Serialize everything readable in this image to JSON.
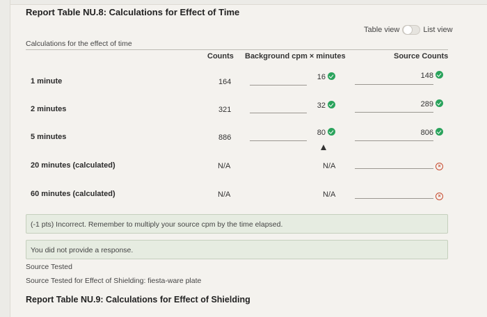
{
  "report": {
    "title": "Report Table NU.8: Calculations for Effect of Time",
    "subtitle": "Calculations for the effect of time",
    "view_toggle": {
      "left": "Table view",
      "right": "List view"
    }
  },
  "table": {
    "columns": [
      "Counts",
      "Background cpm × minutes",
      "Source Counts"
    ],
    "rows": [
      {
        "label": "1 minute",
        "counts": "164",
        "background": "16",
        "source": "148"
      },
      {
        "label": "2 minutes",
        "counts": "321",
        "background": "32",
        "source": "289"
      },
      {
        "label": "5 minutes",
        "counts": "886",
        "background": "80",
        "source": "806"
      },
      {
        "label": "20 minutes (calculated)",
        "counts": "N/A",
        "background": "N/A",
        "source": ""
      },
      {
        "label": "60 minutes (calculated)",
        "counts": "N/A",
        "background": "N/A",
        "source": ""
      }
    ]
  },
  "feedback": {
    "incorrect": "(-1 pts) Incorrect. Remember to multiply your source cpm by the time elapsed.",
    "no_response": "You did not provide a response."
  },
  "source": {
    "label": "Source Tested",
    "detail": "Source Tested for Effect of Shielding: fiesta-ware plate"
  },
  "next_report": {
    "title": "Report Table NU.9: Calculations for Effect of Shielding"
  },
  "colors": {
    "correct": "#2aa35c",
    "incorrect": "#c74a2e",
    "feedback_bg": "#e6ece1"
  }
}
